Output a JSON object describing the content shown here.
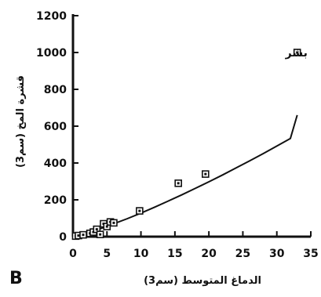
{
  "chart_data": {
    "type": "scatter",
    "panel_label": "B",
    "xlabel": "الدماغ المتوسط (سم3)",
    "ylabel": "قشرة المخ (سم3)",
    "xlim": [
      0,
      35
    ],
    "ylim": [
      0,
      1200
    ],
    "xticks": [
      0,
      5,
      10,
      15,
      20,
      25,
      30,
      35
    ],
    "yticks": [
      0,
      200,
      400,
      600,
      800,
      1000,
      1200
    ],
    "points": [
      {
        "x": 0.4,
        "y": 3
      },
      {
        "x": 0.8,
        "y": 6
      },
      {
        "x": 1.5,
        "y": 10
      },
      {
        "x": 2.5,
        "y": 18
      },
      {
        "x": 3.0,
        "y": 25
      },
      {
        "x": 3.5,
        "y": 40
      },
      {
        "x": 4.0,
        "y": 12
      },
      {
        "x": 4.5,
        "y": 70
      },
      {
        "x": 5.0,
        "y": 55
      },
      {
        "x": 5.5,
        "y": 80
      },
      {
        "x": 6.0,
        "y": 75
      },
      {
        "x": 9.8,
        "y": 140
      },
      {
        "x": 15.5,
        "y": 290
      },
      {
        "x": 19.5,
        "y": 340
      },
      {
        "x": 33.0,
        "y": 1000
      }
    ],
    "fit_curve": {
      "x": [
        0,
        2,
        4,
        6,
        8,
        10,
        12,
        14,
        16,
        18,
        20,
        22,
        24,
        26,
        28,
        30,
        32,
        33
      ],
      "y": [
        0,
        19,
        43,
        70,
        98,
        128,
        160,
        193,
        227,
        262,
        298,
        335,
        373,
        412,
        451,
        492,
        533,
        660
      ]
    },
    "annotations": [
      {
        "text": "بشر",
        "x": 33.0,
        "y": 1000
      }
    ],
    "grid": false,
    "legend": "none"
  }
}
